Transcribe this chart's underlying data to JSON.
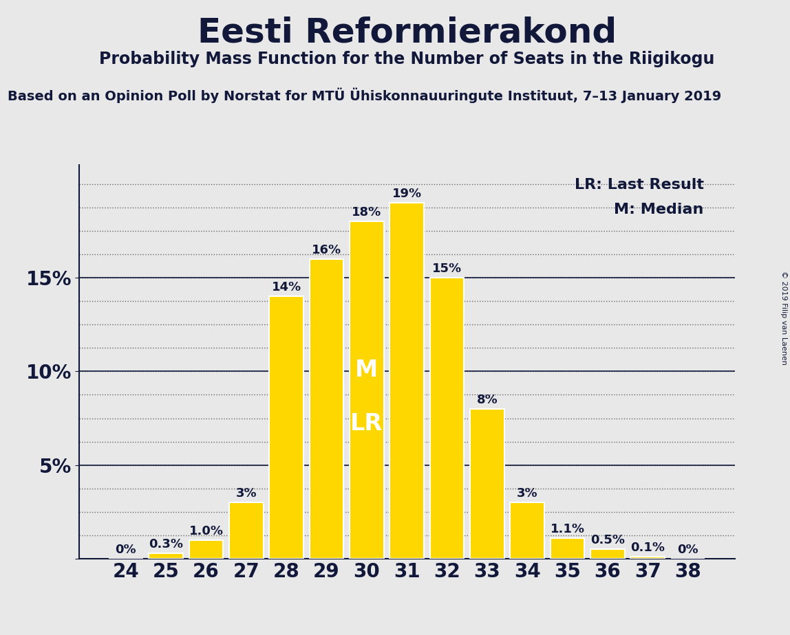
{
  "title": "Eesti Reformierakond",
  "subtitle": "Probability Mass Function for the Number of Seats in the Riigikogu",
  "source_line": "Based on an Opinion Poll by Norstat for MTÜ Ühiskonnauuringute Instituut, 7–13 January 2019",
  "copyright": "© 2019 Filip van Laenen",
  "categories": [
    24,
    25,
    26,
    27,
    28,
    29,
    30,
    31,
    32,
    33,
    34,
    35,
    36,
    37,
    38
  ],
  "values": [
    0.0,
    0.3,
    1.0,
    3.0,
    14.0,
    16.0,
    18.0,
    19.0,
    15.0,
    8.0,
    3.0,
    1.1,
    0.5,
    0.1,
    0.0
  ],
  "labels": [
    "0%",
    "0.3%",
    "1.0%",
    "3%",
    "14%",
    "16%",
    "18%",
    "19%",
    "15%",
    "8%",
    "3%",
    "1.1%",
    "0.5%",
    "0.1%",
    "0%"
  ],
  "bar_color": "#FFD700",
  "bar_edge_color": "#FFFFFF",
  "background_color": "#E8E8E8",
  "text_color": "#12183A",
  "median_seat": 30,
  "lr_seat": 30,
  "legend_lr": "LR: Last Result",
  "legend_m": "M: Median",
  "ylim": [
    0,
    21
  ],
  "major_yticks": [
    0,
    5,
    10,
    15
  ],
  "major_ytick_labels": [
    "",
    "5%",
    "10%",
    "15%"
  ],
  "minor_ytick_step": 1.25,
  "label_fontsize": 13,
  "tick_fontsize": 20,
  "title_fontsize": 36,
  "subtitle_fontsize": 17,
  "source_fontsize": 14,
  "legend_fontsize": 16
}
